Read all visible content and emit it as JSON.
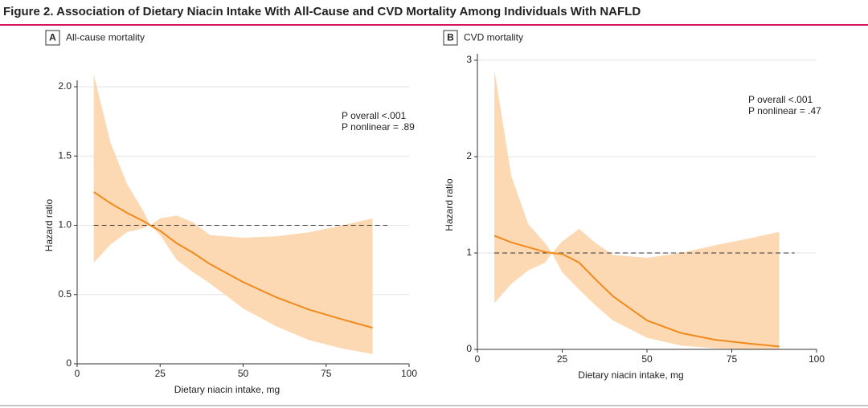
{
  "figure_title": "Figure 2. Association of Dietary Niacin Intake With All-Cause and CVD Mortality Among Individuals With NAFLD",
  "chart_data": [
    {
      "type": "line",
      "panel": "A",
      "title": "All-cause mortality",
      "x_label": "Dietary niacin intake, mg",
      "y_label": "Hazard ratio",
      "annotations": [
        "P overall <.001",
        "P nonlinear = .89"
      ],
      "x": [
        5,
        10,
        15,
        20,
        22,
        25,
        30,
        35,
        40,
        50,
        60,
        70,
        80,
        89
      ],
      "series": [
        {
          "color": "#f08a1c",
          "values": [
            1.24,
            1.16,
            1.09,
            1.03,
            1.0,
            0.96,
            0.87,
            0.8,
            0.72,
            0.59,
            0.48,
            0.39,
            0.32,
            0.26
          ]
        }
      ],
      "band": {
        "color": "#fdd9b3",
        "upper": [
          2.09,
          1.6,
          1.3,
          1.1,
          1.0,
          1.05,
          1.07,
          1.02,
          0.93,
          0.91,
          0.92,
          0.95,
          1.0,
          1.05
        ],
        "lower": [
          0.73,
          0.86,
          0.95,
          0.98,
          1.0,
          0.93,
          0.75,
          0.66,
          0.58,
          0.4,
          0.27,
          0.17,
          0.11,
          0.07
        ]
      },
      "reference_line": 1,
      "xlim": [
        0,
        100
      ],
      "xticks": [
        0,
        25,
        50,
        75,
        100
      ],
      "ylim": [
        0,
        2
      ],
      "yticks": [
        0,
        0.5,
        {
          "value": 1,
          "label": "1.0"
        },
        1.5,
        {
          "value": 2,
          "label": "2.0"
        }
      ],
      "grid": true
    },
    {
      "type": "line",
      "panel": "B",
      "title": "CVD mortality",
      "x_label": "Dietary niacin intake, mg",
      "y_label": "Hazard ratio",
      "annotations": [
        "P overall <.001",
        "P nonlinear = .47"
      ],
      "x": [
        5,
        10,
        15,
        20,
        22,
        25,
        30,
        35,
        40,
        50,
        60,
        70,
        80,
        89
      ],
      "series": [
        {
          "color": "#f08a1c",
          "values": [
            1.18,
            1.11,
            1.06,
            1.01,
            1.0,
            0.99,
            0.9,
            0.72,
            0.55,
            0.3,
            0.17,
            0.1,
            0.06,
            0.03
          ]
        }
      ],
      "band": {
        "color": "#fdd9b3",
        "upper": [
          2.9,
          1.8,
          1.3,
          1.1,
          1.0,
          1.12,
          1.25,
          1.1,
          0.98,
          0.95,
          1.0,
          1.08,
          1.15,
          1.22
        ],
        "lower": [
          0.48,
          0.68,
          0.82,
          0.9,
          1.0,
          0.8,
          0.62,
          0.45,
          0.3,
          0.12,
          0.04,
          0.01,
          0,
          0
        ]
      },
      "reference_line": 1,
      "xlim": [
        0,
        100
      ],
      "xticks": [
        0,
        25,
        50,
        75,
        100
      ],
      "ylim": [
        0,
        3
      ],
      "yticks": [
        0,
        1,
        2,
        3
      ],
      "grid": true
    }
  ]
}
